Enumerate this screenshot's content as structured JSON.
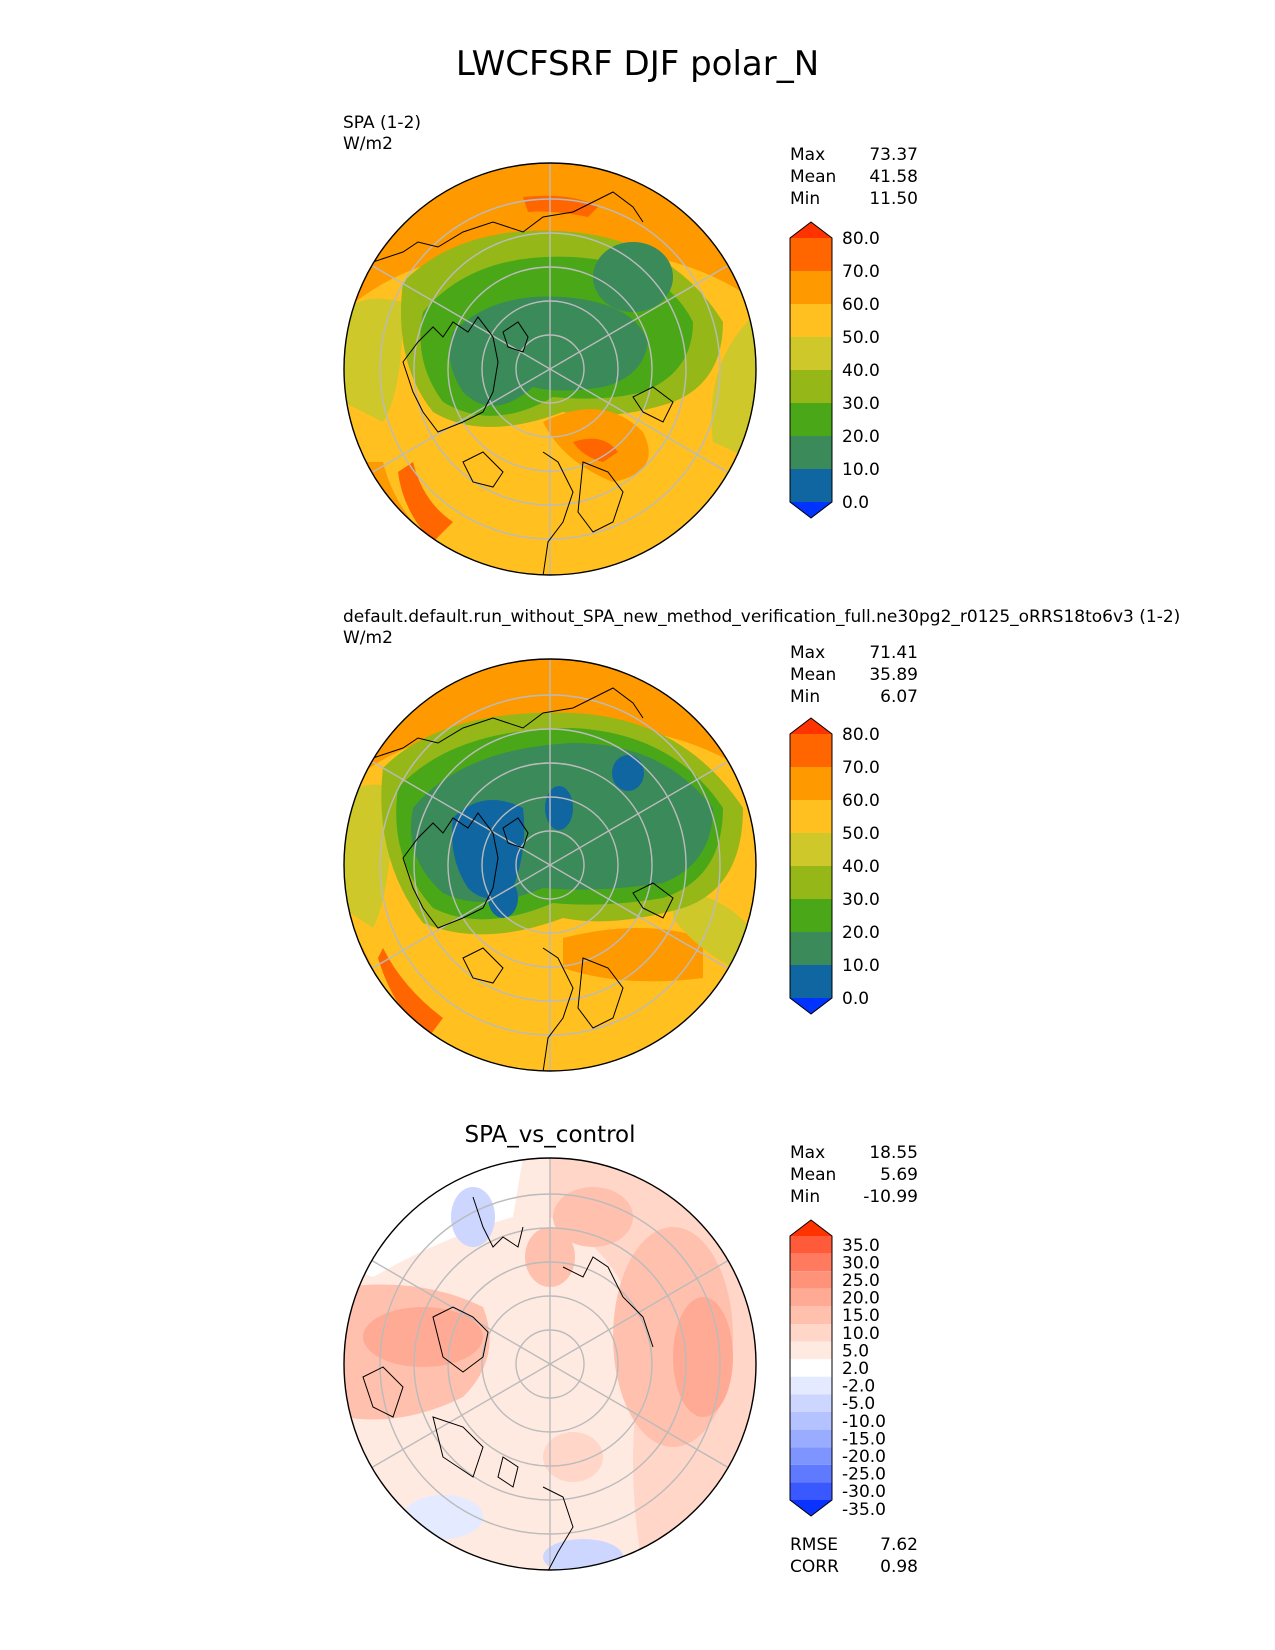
{
  "title": "LWCFSRF DJF polar_N",
  "panels": [
    {
      "id": "test",
      "title": "SPA (1-2)",
      "units": "W/m2",
      "stats": {
        "max_label": "Max",
        "max": "73.37",
        "mean_label": "Mean",
        "mean": "41.58",
        "min_label": "Min",
        "min": "11.50"
      }
    },
    {
      "id": "ref",
      "title": "default.default.run_without_SPA_new_method_verification_full.ne30pg2_r0125_oRRS18to6v3 (1-2)",
      "units": "W/m2",
      "stats": {
        "max_label": "Max",
        "max": "71.41",
        "mean_label": "Mean",
        "mean": "35.89",
        "min_label": "Min",
        "min": "6.07"
      }
    },
    {
      "id": "diff",
      "title": "SPA_vs_control",
      "stats": {
        "max_label": "Max",
        "max": "18.55",
        "mean_label": "Mean",
        "mean": "5.69",
        "min_label": "Min",
        "min": "-10.99"
      },
      "metrics": {
        "rmse_label": "RMSE",
        "rmse": "7.62",
        "corr_label": "CORR",
        "corr": "0.98"
      }
    }
  ],
  "colorbars": {
    "field": {
      "labels": [
        "80.0",
        "70.0",
        "60.0",
        "50.0",
        "40.0",
        "30.0",
        "20.0",
        "10.0",
        "0.0"
      ],
      "colors": [
        "#ff3300",
        "#ff6600",
        "#ff9900",
        "#ffc020",
        "#cfc82a",
        "#95b818",
        "#4aa818",
        "#3a8a5a",
        "#1066a0",
        "#0033ff"
      ]
    },
    "diff": {
      "labels": [
        "35.0",
        "30.0",
        "25.0",
        "20.0",
        "15.0",
        "10.0",
        "5.0",
        "2.0",
        "-2.0",
        "-5.0",
        "-10.0",
        "-15.0",
        "-20.0",
        "-25.0",
        "-30.0",
        "-35.0"
      ],
      "colors": [
        "#ff3300",
        "#ff5a3a",
        "#ff7a5e",
        "#ff937a",
        "#ffaa94",
        "#ffc0ae",
        "#ffd6c8",
        "#ffeae2",
        "#ffffff",
        "#e4eaff",
        "#ccd6ff",
        "#b4c2ff",
        "#9aacff",
        "#7e94ff",
        "#607aff",
        "#3a58ff",
        "#0a33ff"
      ]
    }
  }
}
